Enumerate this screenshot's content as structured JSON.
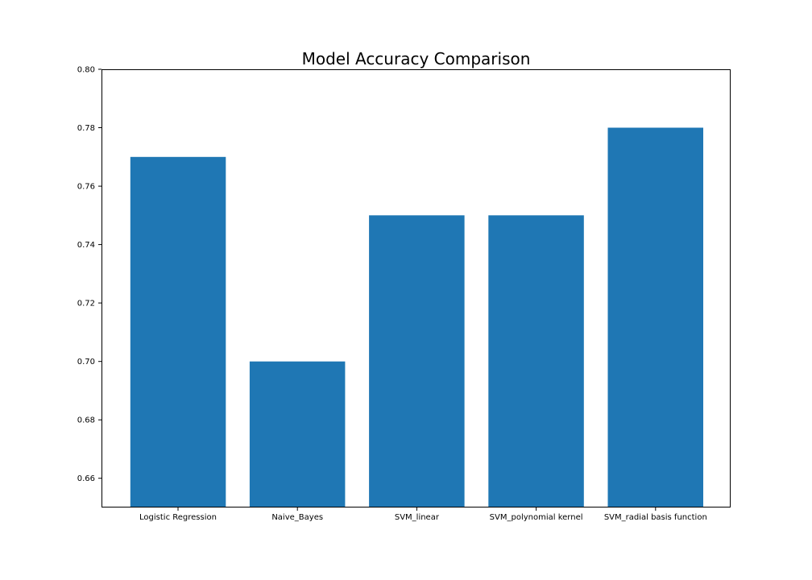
{
  "chart_data": {
    "type": "bar",
    "title": "Model Accuracy Comparison",
    "xlabel": "",
    "ylabel": "",
    "categories": [
      "Logistic Regression",
      "Naive_Bayes",
      "SVM_linear",
      "SVM_polynomial kernel",
      "SVM_radial basis function"
    ],
    "values": [
      0.77,
      0.7,
      0.75,
      0.75,
      0.78
    ],
    "ylim": [
      0.65,
      0.8
    ],
    "yticks": [
      0.66,
      0.68,
      0.7,
      0.72,
      0.74,
      0.76,
      0.78,
      0.8
    ],
    "ytick_labels": [
      "0.66",
      "0.68",
      "0.70",
      "0.72",
      "0.74",
      "0.76",
      "0.78",
      "0.80"
    ],
    "grid": false,
    "legend": "none",
    "colors": {
      "bar": "#1f77b4",
      "axes": "#000000",
      "background": "#ffffff"
    }
  }
}
